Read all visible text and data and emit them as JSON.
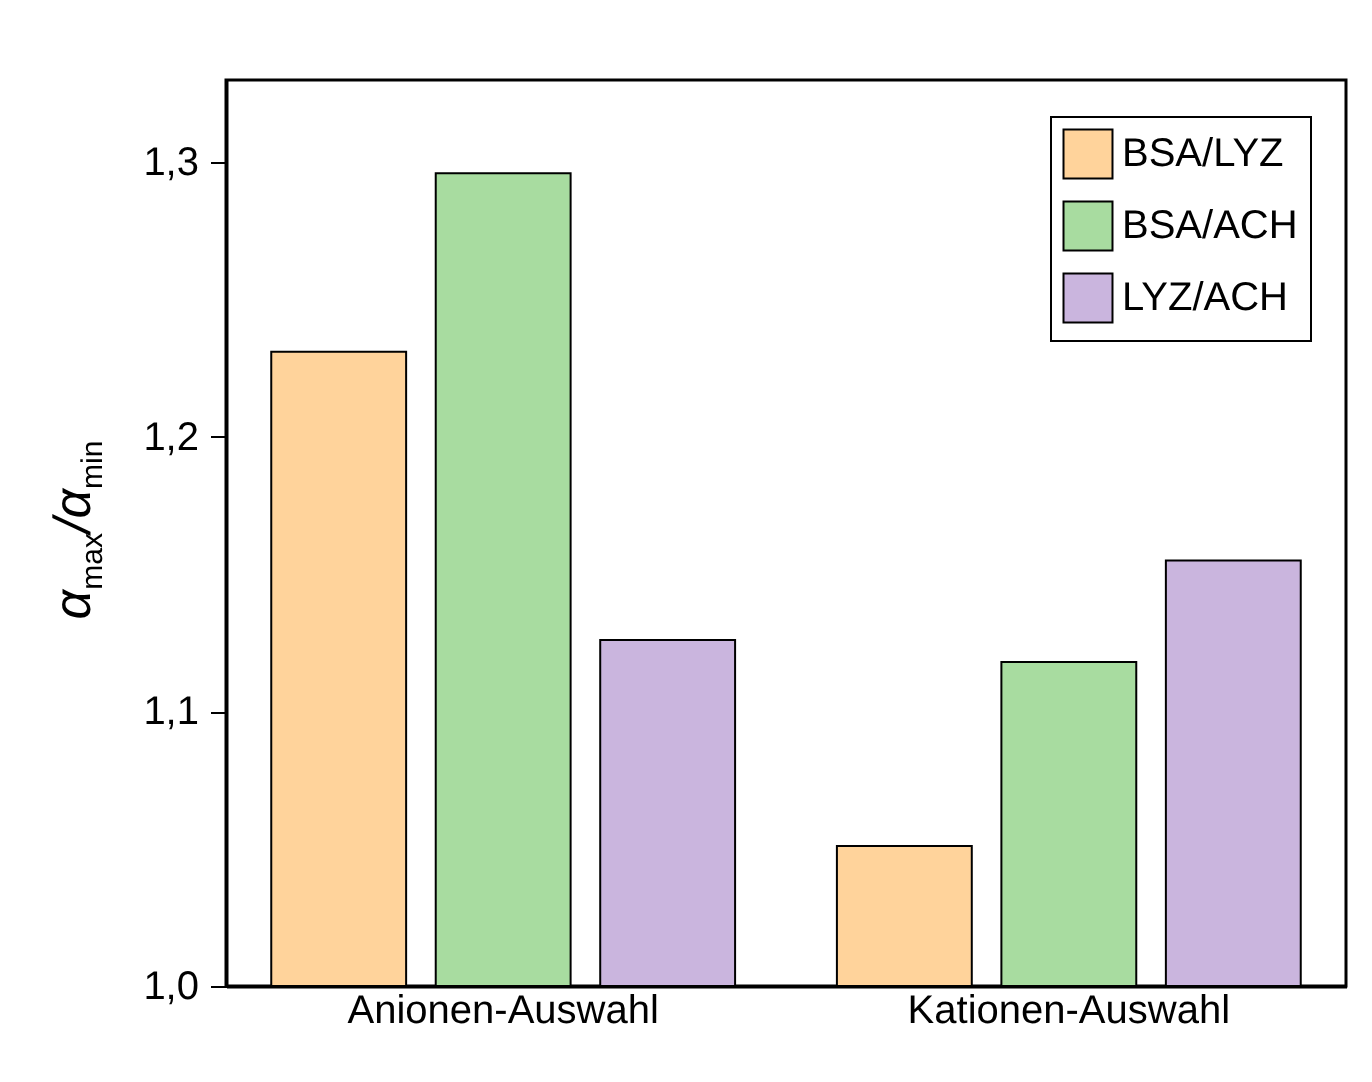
{
  "chart_data": {
    "type": "bar",
    "ylabel": "α$_{max}$/α$_{min}$",
    "categories": [
      "Anionen-Auswahl",
      "Kationen-Auswahl"
    ],
    "series": [
      {
        "name": "BSA/LYZ",
        "color": "#ffd39b",
        "values": [
          1.231,
          1.051
        ]
      },
      {
        "name": "BSA/ACH",
        "color": "#a8dca0",
        "values": [
          1.296,
          1.118
        ]
      },
      {
        "name": "LYZ/ACH",
        "color": "#cab5de",
        "values": [
          1.126,
          1.155
        ]
      }
    ],
    "ylim": [
      1.0,
      1.33
    ],
    "yticks": [
      {
        "value": 1.0,
        "label": "1,0"
      },
      {
        "value": 1.1,
        "label": "1,1"
      },
      {
        "value": 1.2,
        "label": "1,2"
      },
      {
        "value": 1.3,
        "label": "1,3"
      }
    ],
    "grid": false,
    "legend": "top right"
  }
}
